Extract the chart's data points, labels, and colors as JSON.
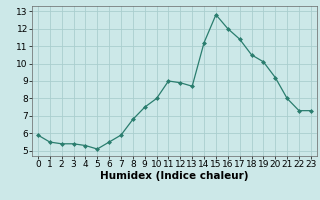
{
  "x": [
    0,
    1,
    2,
    3,
    4,
    5,
    6,
    7,
    8,
    9,
    10,
    11,
    12,
    13,
    14,
    15,
    16,
    17,
    18,
    19,
    20,
    21,
    22,
    23
  ],
  "y": [
    5.9,
    5.5,
    5.4,
    5.4,
    5.3,
    5.1,
    5.5,
    5.9,
    6.8,
    7.5,
    8.0,
    9.0,
    8.9,
    8.7,
    11.2,
    12.8,
    12.0,
    11.4,
    10.5,
    10.1,
    9.2,
    8.0,
    7.3,
    7.3
  ],
  "xlabel": "Humidex (Indice chaleur)",
  "xlim": [
    -0.5,
    23.5
  ],
  "ylim": [
    4.7,
    13.3
  ],
  "yticks": [
    5,
    6,
    7,
    8,
    9,
    10,
    11,
    12,
    13
  ],
  "xticks": [
    0,
    1,
    2,
    3,
    4,
    5,
    6,
    7,
    8,
    9,
    10,
    11,
    12,
    13,
    14,
    15,
    16,
    17,
    18,
    19,
    20,
    21,
    22,
    23
  ],
  "line_color": "#2a7d6e",
  "marker_color": "#2a7d6e",
  "bg_color": "#cce8e8",
  "grid_color": "#aacece",
  "xlabel_fontsize": 7.5,
  "tick_fontsize": 6.5
}
